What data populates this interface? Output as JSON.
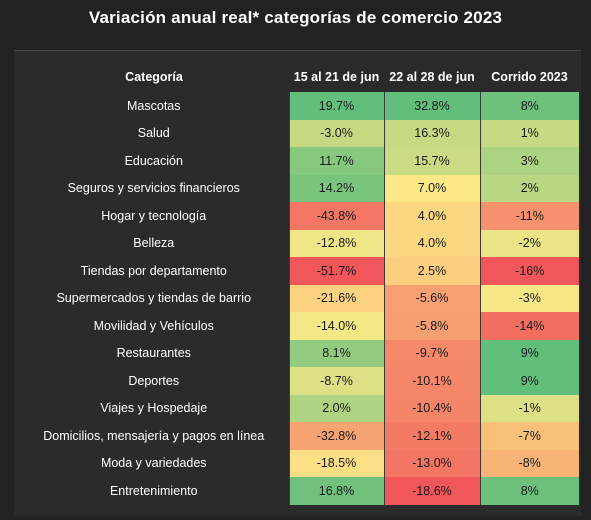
{
  "title": "Variación anual real* categorías de comercio 2023",
  "chart_data": {
    "type": "table",
    "title": "Variación anual real* categorías de comercio 2023",
    "columns": [
      "Categoría",
      "15 al 21 de jun",
      "22 al 28 de jun",
      "Corrido 2023"
    ],
    "rows": [
      {
        "category": "Mascotas",
        "values": [
          "19.7%",
          "32.8%",
          "8%"
        ],
        "numbers": [
          19.7,
          32.8,
          8
        ]
      },
      {
        "category": "Salud",
        "values": [
          "-3.0%",
          "16.3%",
          "1%"
        ],
        "numbers": [
          -3.0,
          16.3,
          1
        ]
      },
      {
        "category": "Educación",
        "values": [
          "11.7%",
          "15.7%",
          "3%"
        ],
        "numbers": [
          11.7,
          15.7,
          3
        ]
      },
      {
        "category": "Seguros y servicios financieros",
        "values": [
          "14.2%",
          "7.0%",
          "2%"
        ],
        "numbers": [
          14.2,
          7.0,
          2
        ]
      },
      {
        "category": "Hogar y tecnología",
        "values": [
          "-43.8%",
          "4.0%",
          "-11%"
        ],
        "numbers": [
          -43.8,
          4.0,
          -11
        ]
      },
      {
        "category": "Belleza",
        "values": [
          "-12.8%",
          "4.0%",
          "-2%"
        ],
        "numbers": [
          -12.8,
          4.0,
          -2
        ]
      },
      {
        "category": "Tiendas por departamento",
        "values": [
          "-51.7%",
          "2.5%",
          "-16%"
        ],
        "numbers": [
          -51.7,
          2.5,
          -16
        ]
      },
      {
        "category": "Supermercados  y tiendas de barrio",
        "values": [
          "-21.6%",
          "-5.6%",
          "-3%"
        ],
        "numbers": [
          -21.6,
          -5.6,
          -3
        ]
      },
      {
        "category": "Movilidad y Vehículos",
        "values": [
          "-14.0%",
          "-5.8%",
          "-14%"
        ],
        "numbers": [
          -14.0,
          -5.8,
          -14
        ]
      },
      {
        "category": "Restaurantes",
        "values": [
          "8.1%",
          "-9.7%",
          "9%"
        ],
        "numbers": [
          8.1,
          -9.7,
          9
        ]
      },
      {
        "category": "Deportes",
        "values": [
          "-8.7%",
          "-10.1%",
          "9%"
        ],
        "numbers": [
          -8.7,
          -10.1,
          9
        ]
      },
      {
        "category": "Viajes  y Hospedaje",
        "values": [
          "2.0%",
          "-10.4%",
          "-1%"
        ],
        "numbers": [
          2.0,
          -10.4,
          -1
        ]
      },
      {
        "category": "Domicilios, mensajería  y pagos en línea",
        "values": [
          "-32.8%",
          "-12.1%",
          "-7%"
        ],
        "numbers": [
          -32.8,
          -12.1,
          -7
        ]
      },
      {
        "category": "Moda y variedades",
        "values": [
          "-18.5%",
          "-13.0%",
          "-8%"
        ],
        "numbers": [
          -18.5,
          -13.0,
          -8
        ]
      },
      {
        "category": "Entretenimiento",
        "values": [
          "16.8%",
          "-18.6%",
          "8%"
        ],
        "numbers": [
          16.8,
          -18.6,
          8
        ]
      }
    ],
    "color_scale": {
      "low": "#f0565a",
      "mid": "#fde987",
      "high": "#62be7b"
    }
  }
}
